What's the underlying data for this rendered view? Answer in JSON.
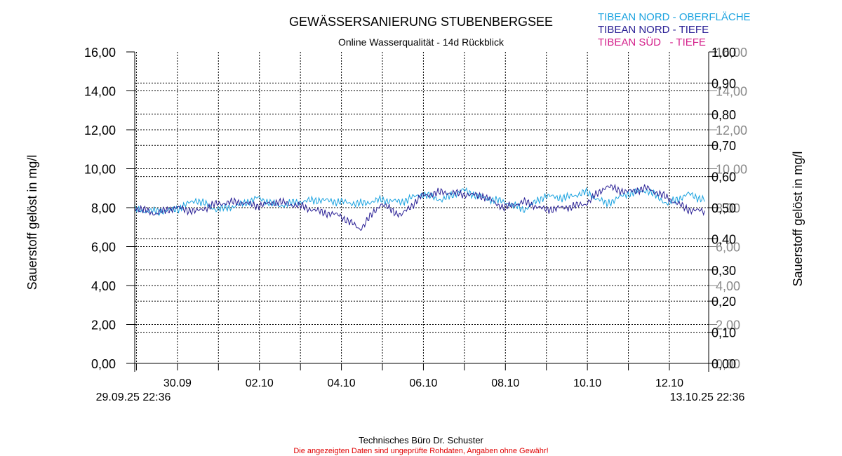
{
  "chart_data": {
    "type": "line",
    "title": "GEWÄSSERSANIERUNG STUBENBERGSEE",
    "subtitle": "Online Wasserqualität - 14d Rückblick",
    "ylabel_left": "Sauerstoff gelöst in mg/l",
    "ylabel_right": "Sauerstoff gelöst in mg/l",
    "ylim": [
      0,
      16
    ],
    "yticks_left": [
      "0,00",
      "2,00",
      "4,00",
      "6,00",
      "8,00",
      "10,00",
      "12,00",
      "14,00",
      "16,00"
    ],
    "yticks_right_black": [
      "0,00",
      "0,10",
      "0,20",
      "0,30",
      "0,40",
      "0,50",
      "0,60",
      "0,70",
      "0,80",
      "0,90",
      "1,00"
    ],
    "yticks_right_gray": [
      "0,00",
      "2,00",
      "4,00",
      "6,00",
      "8,00",
      "10,00",
      "12,00",
      "14,00",
      "16,00"
    ],
    "x_start_label": "29.09.25 22:36",
    "x_end_label": "13.10.25 22:36",
    "x_range_days": 14,
    "xtick_labels": [
      "30.09",
      "02.10",
      "04.10",
      "06.10",
      "08.10",
      "10.10",
      "12.10"
    ],
    "xtick_days": [
      0.0417,
      1.0417,
      2.0417,
      3.0417,
      4.0417,
      5.0417,
      6.0417,
      7.0417,
      8.0417,
      9.0417,
      10.0417,
      11.0417,
      12.0417,
      13.0417
    ],
    "xtick_label_days": [
      1.0417,
      3.0417,
      5.0417,
      7.0417,
      9.0417,
      11.0417,
      13.0417
    ],
    "grid": true,
    "legend_position": "top-right",
    "series": [
      {
        "name": "TIBEAN NORD - OBERFLÄCHE",
        "color": "#1BA3E0",
        "x": [
          0,
          0.5,
          1,
          1.5,
          2,
          2.5,
          3,
          3.5,
          4,
          4.5,
          5,
          5.5,
          6,
          6.5,
          7,
          7.5,
          8,
          8.5,
          9,
          9.5,
          10,
          10.5,
          11,
          11.5,
          12,
          12.5,
          13,
          13.5,
          13.9
        ],
        "values": [
          7.9,
          7.8,
          7.9,
          8.4,
          7.9,
          8.1,
          8.5,
          8.1,
          8.3,
          8.4,
          8.3,
          8.2,
          8.4,
          8.3,
          8.7,
          8.4,
          8.9,
          8.5,
          8.3,
          7.9,
          8.6,
          8.5,
          8.8,
          8.2,
          8.7,
          8.9,
          8.2,
          8.7,
          8.4
        ]
      },
      {
        "name": "TIBEAN NORD - TIEFE",
        "color": "#2B2196",
        "x": [
          0,
          0.5,
          1,
          1.5,
          2,
          2.5,
          3,
          3.5,
          4,
          4.5,
          5,
          5.5,
          6,
          6.5,
          7,
          7.5,
          8,
          8.5,
          9,
          9.5,
          10,
          10.5,
          11,
          11.5,
          12,
          12.5,
          13,
          13.5,
          13.9
        ],
        "values": [
          8.0,
          7.7,
          8.0,
          7.8,
          8.2,
          8.3,
          8.1,
          8.3,
          8.1,
          7.8,
          7.6,
          6.9,
          8.2,
          7.6,
          8.6,
          8.8,
          8.7,
          8.6,
          8.0,
          8.3,
          7.9,
          8.0,
          8.2,
          9.1,
          8.8,
          9.0,
          8.5,
          7.9,
          7.8
        ]
      },
      {
        "name": "TIBEAN SÜD   - TIEFE",
        "color": "#D4228C",
        "x": [],
        "values": []
      }
    ]
  },
  "footer": {
    "company": "Technisches Büro Dr. Schuster",
    "disclaimer": "Die angezeigten Daten sind ungeprüfte Rohdaten, Angaben ohne Gewähr!"
  }
}
